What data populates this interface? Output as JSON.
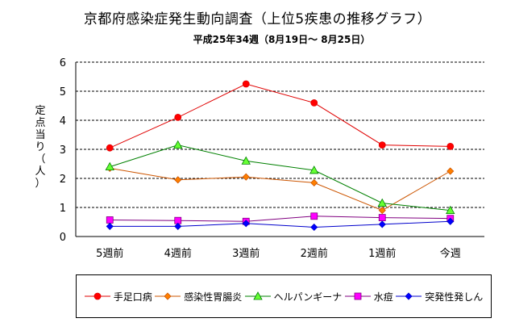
{
  "title": "京都府感染症発生動向調査（上位5疾患の推移グラフ）",
  "subtitle": "平成25年34週（8月19日～ 8月25日）",
  "chart_data": {
    "type": "line",
    "ylabel": "定点当り（人）",
    "ylim": [
      0,
      6
    ],
    "yticks": [
      "0",
      "1",
      "2",
      "3",
      "4",
      "5",
      "6"
    ],
    "grid": "horizontal dashed",
    "legend_position": "bottom",
    "categories": [
      "5週前",
      "4週前",
      "3週前",
      "2週前",
      "1週前",
      "今週"
    ],
    "series": [
      {
        "name": "手足口病",
        "color": "#e00000",
        "marker": "circle",
        "marker_fill": "#ff0000",
        "values": [
          3.05,
          4.1,
          5.25,
          4.6,
          3.15,
          3.1
        ]
      },
      {
        "name": "感染性胃腸炎",
        "color": "#cc5500",
        "marker": "diamond",
        "marker_fill": "#ff7f00",
        "values": [
          2.35,
          1.95,
          2.05,
          1.85,
          0.9,
          2.25
        ]
      },
      {
        "name": "ヘルパンギーナ",
        "color": "#008000",
        "marker": "triangle",
        "marker_fill": "#66ff33",
        "values": [
          2.4,
          3.15,
          2.6,
          2.28,
          1.15,
          0.9
        ]
      },
      {
        "name": "水痘",
        "color": "#800080",
        "marker": "square",
        "marker_fill": "#ff00ff",
        "values": [
          0.57,
          0.55,
          0.52,
          0.7,
          0.65,
          0.62
        ]
      },
      {
        "name": "突発性発しん",
        "color": "#0000cc",
        "marker": "diamond",
        "marker_fill": "#0000ff",
        "values": [
          0.35,
          0.35,
          0.45,
          0.32,
          0.42,
          0.52
        ]
      }
    ]
  }
}
